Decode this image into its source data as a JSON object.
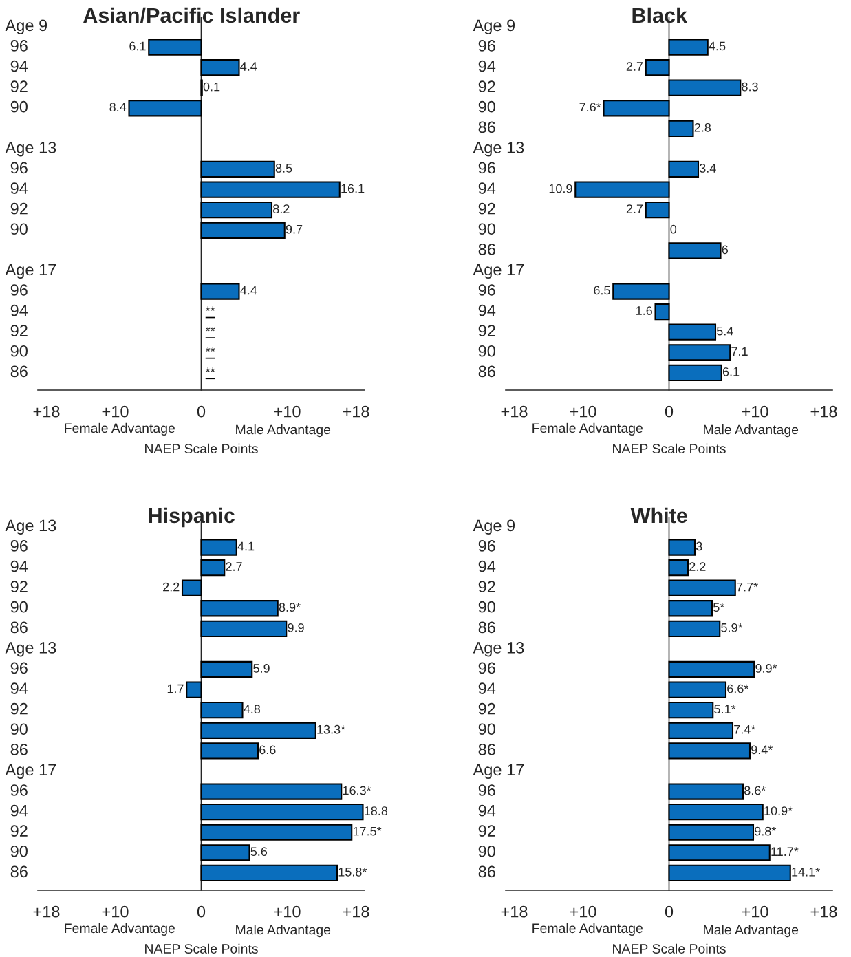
{
  "chart_data": [
    {
      "type": "bar",
      "orientation": "horizontal",
      "title": "Asian/Pacific Islander",
      "xlabel": "NAEP Scale Points",
      "color": "#0a6ebd",
      "categories": [
        "Age 9",
        "96",
        "94",
        "92",
        "90",
        null,
        "Age 13",
        "96",
        "94",
        "92",
        "90",
        null,
        "Age 17",
        "96",
        "94",
        "92",
        "90",
        "86"
      ],
      "values": [
        null,
        6.1,
        4.4,
        0.1,
        8.4,
        null,
        null,
        8.5,
        16.1,
        8.2,
        9.7,
        null,
        null,
        4.4,
        null,
        null,
        null,
        null
      ],
      "base": [
        null,
        -6.1,
        0,
        0,
        -8.4,
        null,
        null,
        0,
        0,
        0,
        0,
        null,
        null,
        0,
        null,
        null,
        null,
        null
      ],
      "value_labels": [
        null,
        "6.1",
        "4.4",
        "0.1",
        "8.4",
        null,
        null,
        "8.5",
        "16.1",
        "8.2",
        "9.7",
        null,
        null,
        "4.4",
        "**",
        "**",
        "**",
        "**"
      ],
      "xlim": [
        -19,
        19
      ],
      "xticks": [
        {
          "value": -18,
          "label": "+18"
        },
        {
          "value": -10,
          "label": "+10"
        },
        0,
        {
          "value": 10,
          "label": "+10"
        },
        {
          "value": 18,
          "label": "+18"
        }
      ],
      "annotations": [
        "Female Advantage",
        "Male Advantage"
      ]
    },
    {
      "type": "bar",
      "orientation": "horizontal",
      "title": "Black",
      "xlabel": "NAEP Scale Points",
      "color": "#0a6ebd",
      "categories": [
        "Age 9",
        "96",
        "94",
        "92",
        "90",
        "86",
        "Age 13",
        "96",
        "94",
        "92",
        "90",
        "86",
        "Age 17",
        "96",
        "94",
        "92",
        "90",
        "86"
      ],
      "values": [
        null,
        4.5,
        2.7,
        8.3,
        7.6,
        2.8,
        null,
        3.4,
        10.9,
        2.7,
        0,
        6,
        null,
        6.5,
        1.6,
        5.4,
        7.1,
        6.1
      ],
      "base": [
        null,
        0,
        -2.7,
        0,
        -7.6,
        0,
        null,
        0,
        -10.9,
        -2.7,
        null,
        0,
        null,
        -6.5,
        -1.6,
        0,
        0,
        0
      ],
      "value_labels": [
        null,
        "4.5",
        "2.7",
        "8.3",
        "7.6*",
        "2.8",
        null,
        "3.4",
        "10.9",
        "2.7",
        "0",
        "6",
        null,
        "6.5",
        "1.6",
        "5.4",
        "7.1",
        "6.1"
      ],
      "xlim": [
        -19,
        19
      ],
      "xticks": [
        {
          "value": -18,
          "label": "+18"
        },
        {
          "value": -10,
          "label": "+10"
        },
        0,
        {
          "value": 10,
          "label": "+10"
        },
        {
          "value": 18,
          "label": "+18"
        }
      ],
      "annotations": [
        "Female Advantage",
        "Male Advantage"
      ]
    },
    {
      "type": "bar",
      "orientation": "horizontal",
      "title": "Hispanic",
      "xlabel": "NAEP Scale Points",
      "color": "#0a6ebd",
      "categories": [
        "Age 13",
        "96",
        "94",
        "92",
        "90",
        "86",
        "Age 13",
        "96",
        "94",
        "92",
        "90",
        "86",
        "Age 17",
        "96",
        "94",
        "92",
        "90",
        "86"
      ],
      "values": [
        null,
        4.1,
        2.7,
        2.2,
        8.9,
        9.9,
        null,
        5.9,
        1.7,
        4.8,
        13.3,
        6.6,
        null,
        16.3,
        18.8,
        17.5,
        5.6,
        15.8
      ],
      "base": [
        null,
        0,
        0,
        -2.2,
        0,
        0,
        null,
        0,
        -1.7,
        0,
        0,
        0,
        null,
        0,
        0,
        0,
        0,
        0
      ],
      "value_labels": [
        null,
        "4.1",
        "2.7",
        "2.2",
        "8.9*",
        "9.9",
        null,
        "5.9",
        "1.7",
        "4.8",
        "13.3*",
        "6.6",
        null,
        "16.3*",
        "18.8",
        "17.5*",
        "5.6",
        "15.8*"
      ],
      "xlim": [
        -19,
        19
      ],
      "xticks": [
        {
          "value": -18,
          "label": "+18"
        },
        {
          "value": -10,
          "label": "+10"
        },
        0,
        {
          "value": 10,
          "label": "+10"
        },
        {
          "value": 18,
          "label": "+18"
        }
      ],
      "annotations": [
        "Female Advantage",
        "Male Advantage"
      ]
    },
    {
      "type": "bar",
      "orientation": "horizontal",
      "title": "White",
      "xlabel": "NAEP Scale Points",
      "color": "#0a6ebd",
      "categories": [
        "Age 9",
        "96",
        "94",
        "92",
        "90",
        "86",
        "Age 13",
        "96",
        "94",
        "92",
        "90",
        "86",
        "Age 17",
        "96",
        "94",
        "92",
        "90",
        "86"
      ],
      "values": [
        null,
        3,
        2.2,
        7.7,
        5,
        5.9,
        null,
        9.9,
        6.6,
        5.1,
        7.4,
        9.4,
        null,
        8.6,
        10.9,
        9.8,
        11.7,
        14.1
      ],
      "value_labels": [
        null,
        "3",
        "2.2",
        "7.7*",
        "5*",
        "5.9*",
        null,
        "9.9*",
        "6.6*",
        "5.1*",
        "7.4*",
        "9.4*",
        null,
        "8.6*",
        "10.9*",
        "9.8*",
        "11.7*",
        "14.1*"
      ],
      "xlim": [
        -19,
        19
      ],
      "xticks": [
        {
          "value": -18,
          "label": "+18"
        },
        {
          "value": -10,
          "label": "+10"
        },
        0,
        {
          "value": 10,
          "label": "+10"
        },
        {
          "value": 18,
          "label": "+18"
        }
      ],
      "annotations": [
        "Female Advantage",
        "Male Advantage"
      ]
    }
  ]
}
